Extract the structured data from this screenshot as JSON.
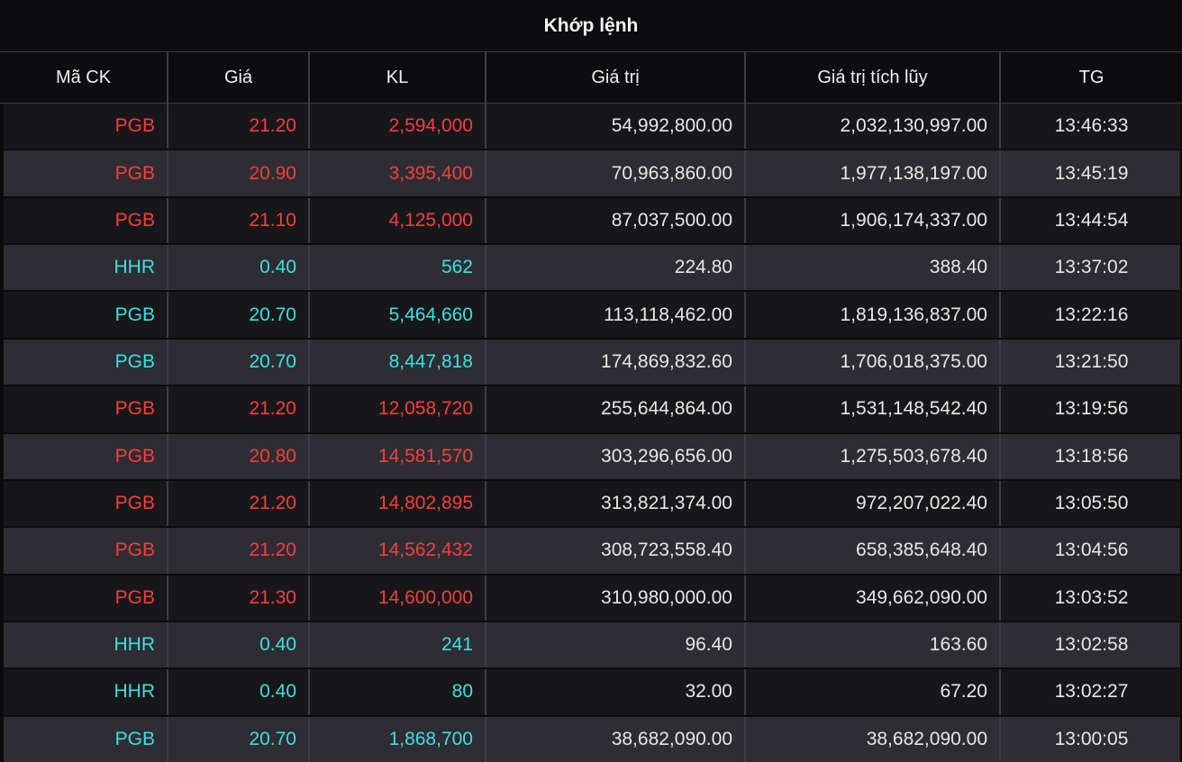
{
  "colors": {
    "red": "#f53e3e",
    "cyan": "#3be0e1",
    "text": "#e7e7e8",
    "header_bg": "#0d0d0f",
    "row_dark": "#17171a",
    "row_light": "#2d2d33",
    "grid_line": "#3e3e42"
  },
  "table": {
    "title": "Khớp lệnh",
    "columns": [
      "Mã CK",
      "Giá",
      "KL",
      "Giá trị",
      "Giá trị tích lũy",
      "TG"
    ],
    "rows": [
      {
        "symbol": "PGB",
        "price": "21.20",
        "volume": "2,594,000",
        "value": "54,992,800.00",
        "cumulative_value": "2,032,130,997.00",
        "time": "13:46:33",
        "price_color": "red"
      },
      {
        "symbol": "PGB",
        "price": "20.90",
        "volume": "3,395,400",
        "value": "70,963,860.00",
        "cumulative_value": "1,977,138,197.00",
        "time": "13:45:19",
        "price_color": "red"
      },
      {
        "symbol": "PGB",
        "price": "21.10",
        "volume": "4,125,000",
        "value": "87,037,500.00",
        "cumulative_value": "1,906,174,337.00",
        "time": "13:44:54",
        "price_color": "red"
      },
      {
        "symbol": "HHR",
        "price": "0.40",
        "volume": "562",
        "value": "224.80",
        "cumulative_value": "388.40",
        "time": "13:37:02",
        "price_color": "cyan"
      },
      {
        "symbol": "PGB",
        "price": "20.70",
        "volume": "5,464,660",
        "value": "113,118,462.00",
        "cumulative_value": "1,819,136,837.00",
        "time": "13:22:16",
        "price_color": "cyan"
      },
      {
        "symbol": "PGB",
        "price": "20.70",
        "volume": "8,447,818",
        "value": "174,869,832.60",
        "cumulative_value": "1,706,018,375.00",
        "time": "13:21:50",
        "price_color": "cyan"
      },
      {
        "symbol": "PGB",
        "price": "21.20",
        "volume": "12,058,720",
        "value": "255,644,864.00",
        "cumulative_value": "1,531,148,542.40",
        "time": "13:19:56",
        "price_color": "red"
      },
      {
        "symbol": "PGB",
        "price": "20.80",
        "volume": "14,581,570",
        "value": "303,296,656.00",
        "cumulative_value": "1,275,503,678.40",
        "time": "13:18:56",
        "price_color": "red"
      },
      {
        "symbol": "PGB",
        "price": "21.20",
        "volume": "14,802,895",
        "value": "313,821,374.00",
        "cumulative_value": "972,207,022.40",
        "time": "13:05:50",
        "price_color": "red"
      },
      {
        "symbol": "PGB",
        "price": "21.20",
        "volume": "14,562,432",
        "value": "308,723,558.40",
        "cumulative_value": "658,385,648.40",
        "time": "13:04:56",
        "price_color": "red"
      },
      {
        "symbol": "PGB",
        "price": "21.30",
        "volume": "14,600,000",
        "value": "310,980,000.00",
        "cumulative_value": "349,662,090.00",
        "time": "13:03:52",
        "price_color": "red"
      },
      {
        "symbol": "HHR",
        "price": "0.40",
        "volume": "241",
        "value": "96.40",
        "cumulative_value": "163.60",
        "time": "13:02:58",
        "price_color": "cyan"
      },
      {
        "symbol": "HHR",
        "price": "0.40",
        "volume": "80",
        "value": "32.00",
        "cumulative_value": "67.20",
        "time": "13:02:27",
        "price_color": "cyan"
      },
      {
        "symbol": "PGB",
        "price": "20.70",
        "volume": "1,868,700",
        "value": "38,682,090.00",
        "cumulative_value": "38,682,090.00",
        "time": "13:00:05",
        "price_color": "cyan"
      }
    ]
  }
}
